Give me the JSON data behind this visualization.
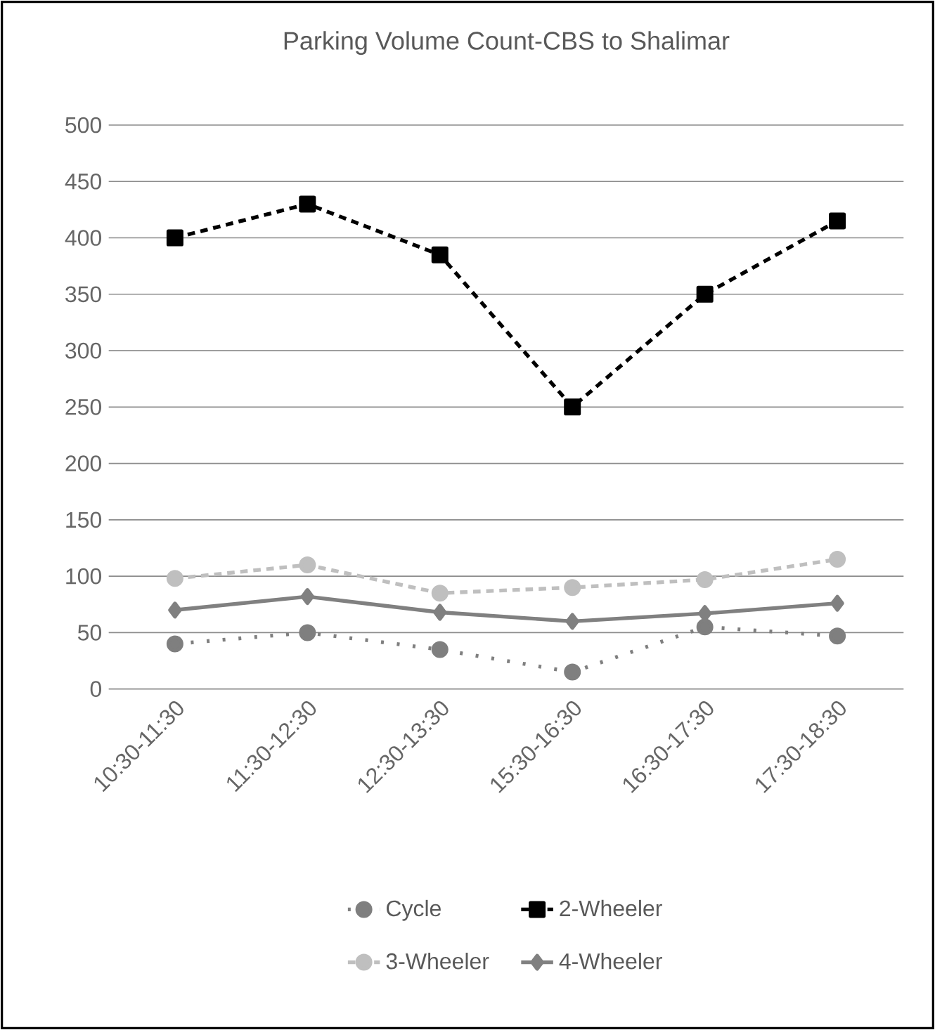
{
  "chart_data": {
    "type": "line",
    "title": "Parking Volume Count-CBS to Shalimar",
    "categories": [
      "10:30-11:30",
      "11:30-12:30",
      "12:30-13:30",
      "15:30-16:30",
      "16:30-17:30",
      "17:30-18:30"
    ],
    "series": [
      {
        "name": "Cycle",
        "color": "#7f7f7f",
        "marker": "circle",
        "line_style": "dotted",
        "values": [
          40,
          50,
          35,
          15,
          55,
          47
        ]
      },
      {
        "name": "2-Wheeler",
        "color": "#000000",
        "marker": "square",
        "line_style": "dashed",
        "values": [
          400,
          430,
          385,
          250,
          350,
          415
        ]
      },
      {
        "name": "3-Wheeler",
        "color": "#bfbfbf",
        "marker": "circle",
        "line_style": "dashed",
        "values": [
          98,
          110,
          85,
          90,
          97,
          115
        ]
      },
      {
        "name": "4-Wheeler",
        "color": "#808080",
        "marker": "diamond",
        "line_style": "solid",
        "values": [
          70,
          82,
          68,
          60,
          67,
          76
        ]
      }
    ],
    "ylim": [
      0,
      500
    ],
    "yticks": [
      0,
      50,
      100,
      150,
      200,
      250,
      300,
      350,
      400,
      450,
      500
    ],
    "grid": "y",
    "legend": "bottom"
  }
}
